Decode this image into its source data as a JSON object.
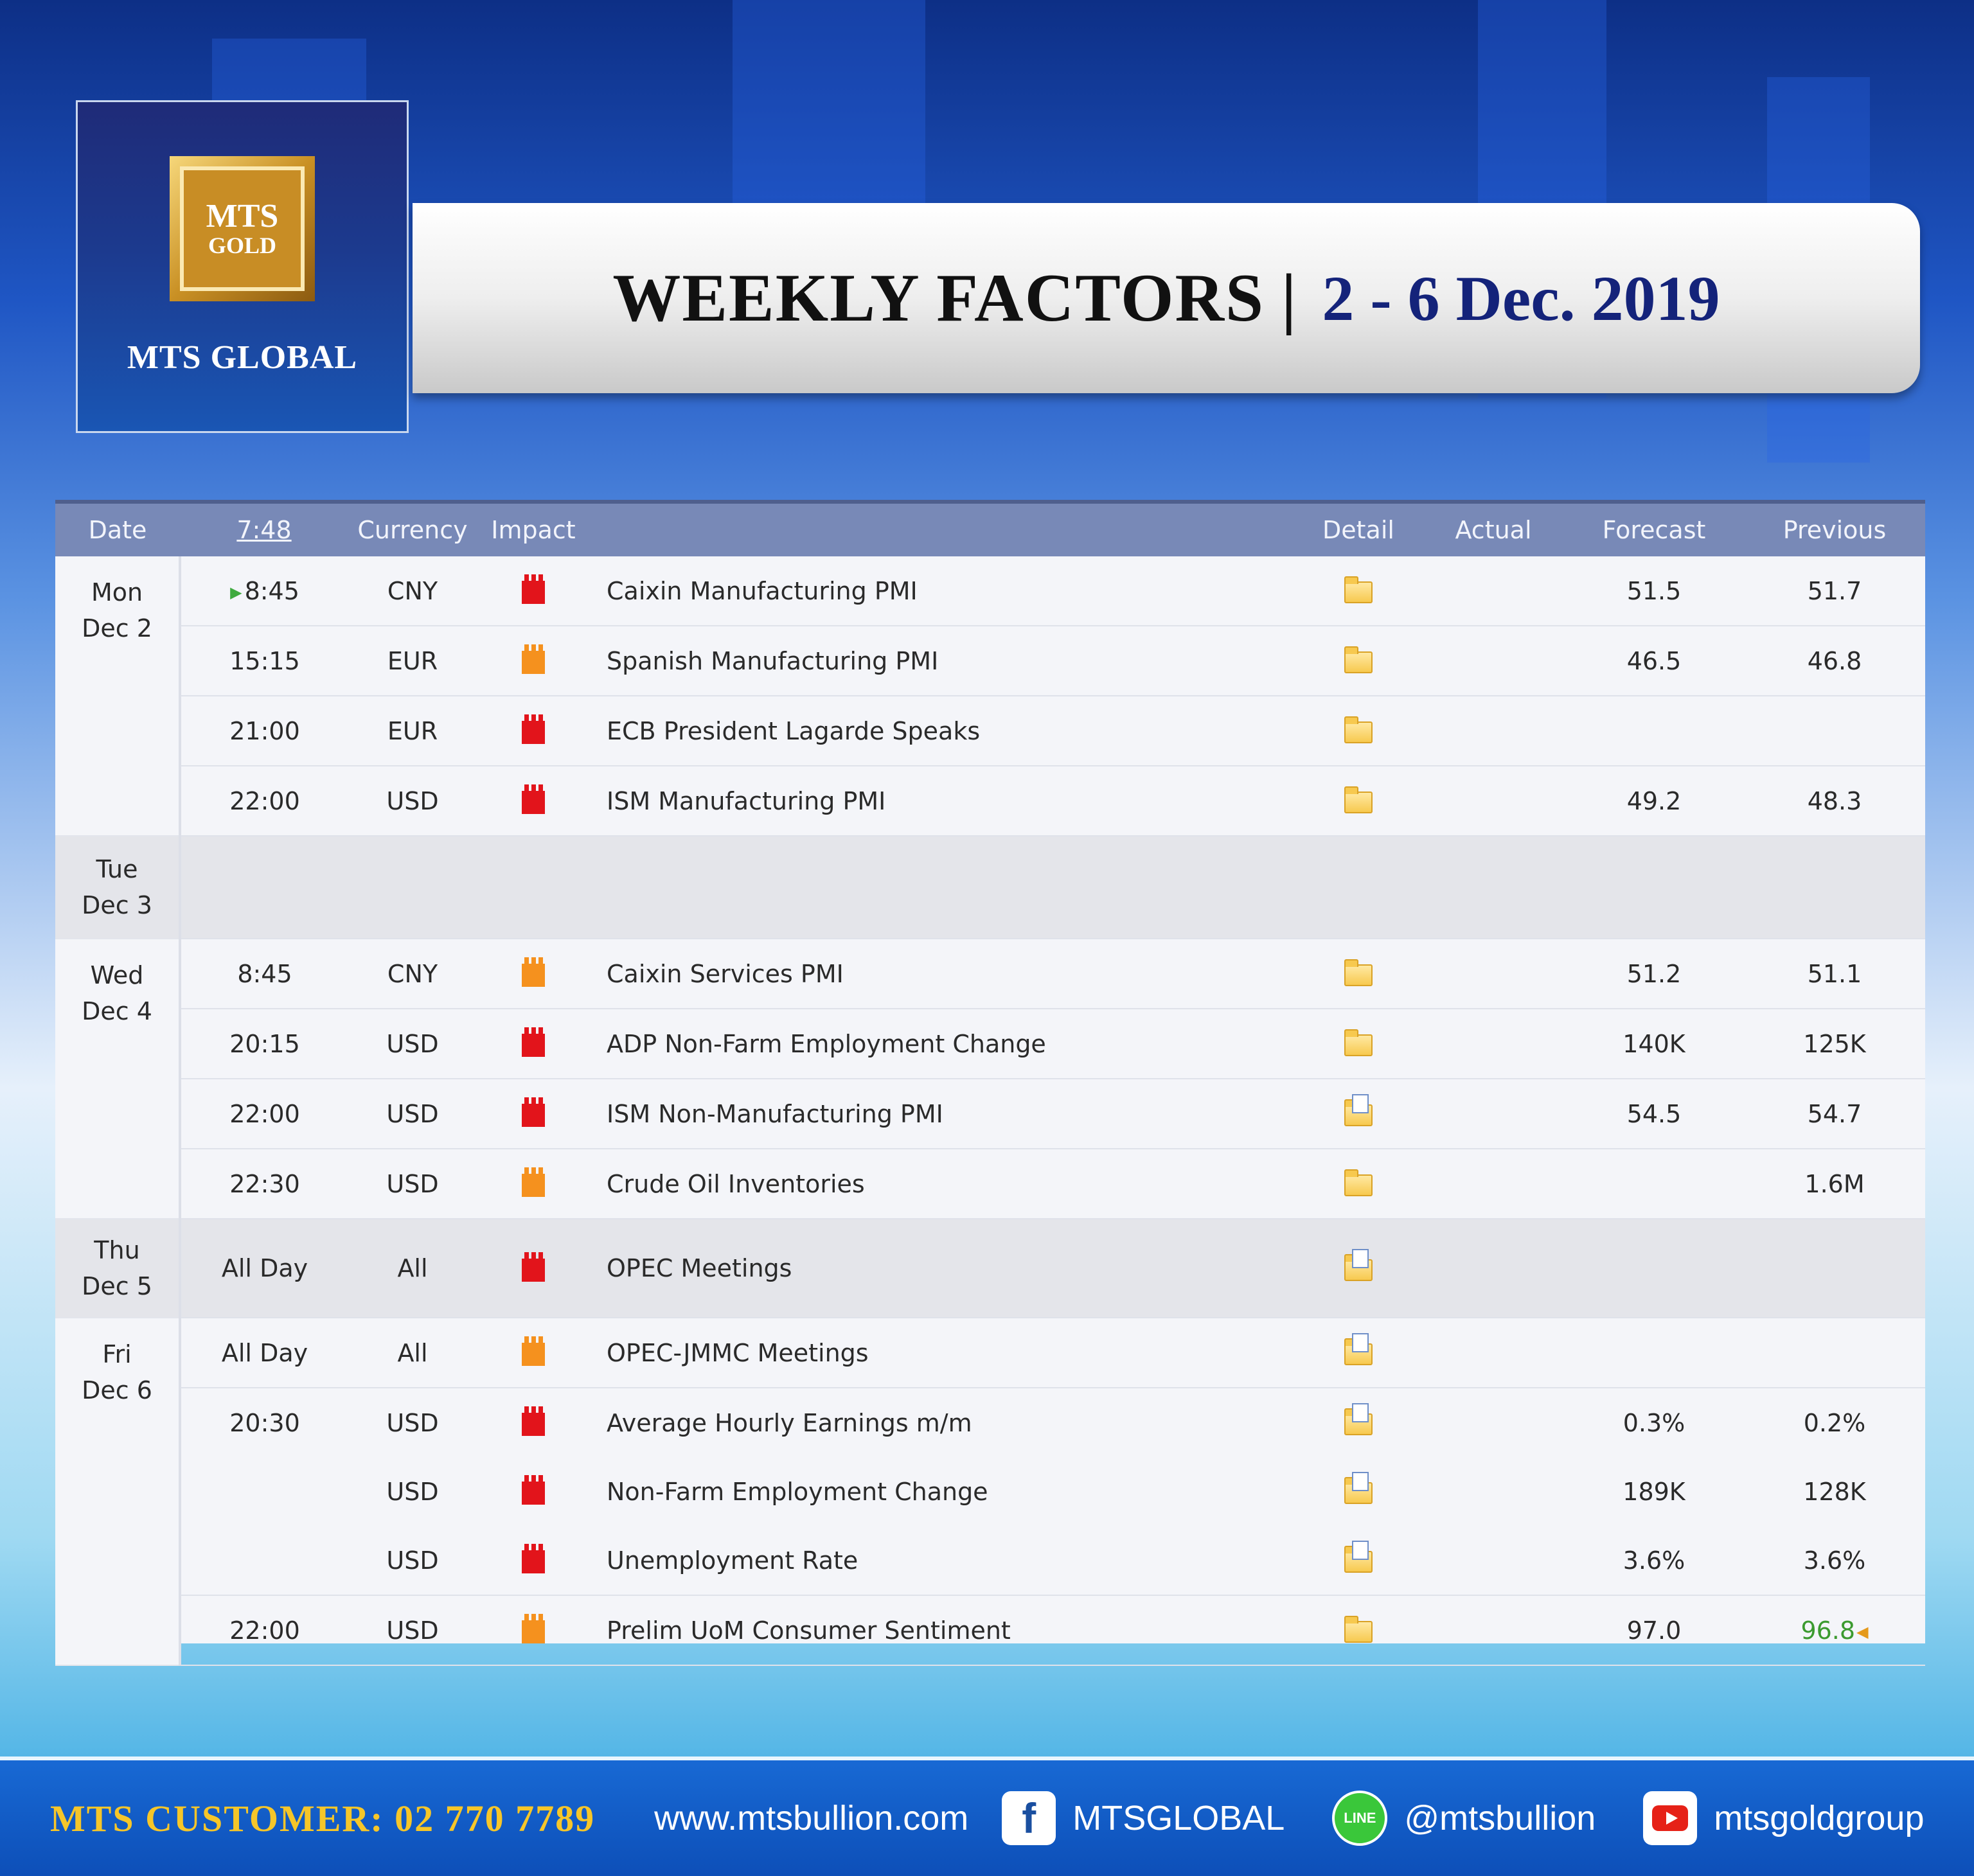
{
  "header": {
    "logo_mts": "MTS",
    "logo_gold": "GOLD",
    "company": "MTS GLOBAL",
    "title": "WEEKLY FACTORS",
    "separator": "|",
    "dates": "2 - 6 Dec. 2019"
  },
  "table": {
    "columns": [
      "Date",
      "7:48",
      "Currency",
      "Impact",
      "",
      "Detail",
      "Actual",
      "Forecast",
      "Previous"
    ],
    "days": [
      {
        "day": "Mon",
        "date": "Dec 2"
      },
      {
        "day": "Tue",
        "date": "Dec 3"
      },
      {
        "day": "Wed",
        "date": "Dec 4"
      },
      {
        "day": "Thu",
        "date": "Dec 5"
      },
      {
        "day": "Fri",
        "date": "Dec 6"
      }
    ],
    "rows": [
      {
        "time": "8:45",
        "currency": "CNY",
        "impact": "high",
        "event": "Caixin Manufacturing PMI",
        "detail_icon": "folder-icon",
        "actual": "",
        "forecast": "51.5",
        "previous": "51.7"
      },
      {
        "time": "15:15",
        "currency": "EUR",
        "impact": "medium",
        "event": "Spanish Manufacturing PMI",
        "detail_icon": "folder-icon",
        "actual": "",
        "forecast": "46.5",
        "previous": "46.8"
      },
      {
        "time": "21:00",
        "currency": "EUR",
        "impact": "high",
        "event": "ECB President Lagarde Speaks",
        "detail_icon": "folder-icon",
        "actual": "",
        "forecast": "",
        "previous": ""
      },
      {
        "time": "22:00",
        "currency": "USD",
        "impact": "high",
        "event": "ISM Manufacturing PMI",
        "detail_icon": "folder-icon",
        "actual": "",
        "forecast": "49.2",
        "previous": "48.3"
      },
      {
        "time": "8:45",
        "currency": "CNY",
        "impact": "medium",
        "event": "Caixin Services PMI",
        "detail_icon": "folder-icon",
        "actual": "",
        "forecast": "51.2",
        "previous": "51.1"
      },
      {
        "time": "20:15",
        "currency": "USD",
        "impact": "high",
        "event": "ADP Non-Farm Employment Change",
        "detail_icon": "folder-icon",
        "actual": "",
        "forecast": "140K",
        "previous": "125K"
      },
      {
        "time": "22:00",
        "currency": "USD",
        "impact": "high",
        "event": "ISM Non-Manufacturing PMI",
        "detail_icon": "folder-doc-icon",
        "actual": "",
        "forecast": "54.5",
        "previous": "54.7"
      },
      {
        "time": "22:30",
        "currency": "USD",
        "impact": "medium",
        "event": "Crude Oil Inventories",
        "detail_icon": "folder-icon",
        "actual": "",
        "forecast": "",
        "previous": "1.6M"
      },
      {
        "time": "All Day",
        "currency": "All",
        "impact": "high",
        "event": "OPEC Meetings",
        "detail_icon": "folder-doc-icon",
        "actual": "",
        "forecast": "",
        "previous": ""
      },
      {
        "time": "All Day",
        "currency": "All",
        "impact": "medium",
        "event": "OPEC-JMMC Meetings",
        "detail_icon": "folder-doc-icon",
        "actual": "",
        "forecast": "",
        "previous": ""
      },
      {
        "time": "20:30",
        "currency": "USD",
        "impact": "high",
        "event": "Average Hourly Earnings m/m",
        "detail_icon": "folder-doc-icon",
        "actual": "",
        "forecast": "0.3%",
        "previous": "0.2%"
      },
      {
        "time": "",
        "currency": "USD",
        "impact": "high",
        "event": "Non-Farm Employment Change",
        "detail_icon": "folder-doc-icon",
        "actual": "",
        "forecast": "189K",
        "previous": "128K"
      },
      {
        "time": "",
        "currency": "USD",
        "impact": "high",
        "event": "Unemployment Rate",
        "detail_icon": "folder-doc-icon",
        "actual": "",
        "forecast": "3.6%",
        "previous": "3.6%"
      },
      {
        "time": "22:00",
        "currency": "USD",
        "impact": "medium",
        "event": "Prelim UoM Consumer Sentiment",
        "detail_icon": "folder-icon",
        "actual": "",
        "forecast": "97.0",
        "previous": "96.8"
      }
    ]
  },
  "colors": {
    "impact_high": "#e2141b",
    "impact_medium": "#f5911e",
    "header_row": "#7889b7",
    "title_dates": "#14237a",
    "hotline": "#f6c629"
  },
  "footer": {
    "hotline": "MTS CUSTOMER: 02 770 7789",
    "website": "www.mtsbullion.com",
    "facebook": "MTSGLOBAL",
    "line": "@mtsbullion",
    "youtube": "mtsgoldgroup",
    "line_icon_text": "LINE"
  }
}
